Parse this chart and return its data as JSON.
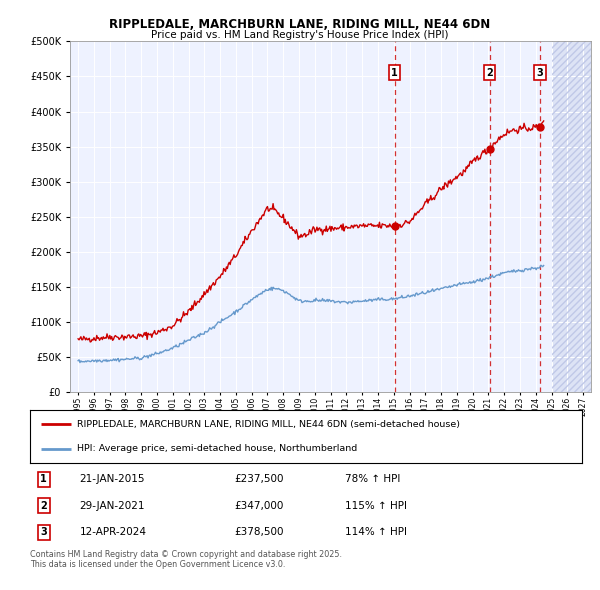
{
  "title1": "RIPPLEDALE, MARCHBURN LANE, RIDING MILL, NE44 6DN",
  "title2": "Price paid vs. HM Land Registry's House Price Index (HPI)",
  "legend1": "RIPPLEDALE, MARCHBURN LANE, RIDING MILL, NE44 6DN (semi-detached house)",
  "legend2": "HPI: Average price, semi-detached house, Northumberland",
  "sale_events": [
    {
      "num": 1,
      "date": "21-JAN-2015",
      "price": "£237,500",
      "pct": "78% ↑ HPI",
      "x_year": 2015.055,
      "y_val": 237500
    },
    {
      "num": 2,
      "date": "29-JAN-2021",
      "price": "£347,000",
      "pct": "115% ↑ HPI",
      "x_year": 2021.08,
      "y_val": 347000
    },
    {
      "num": 3,
      "date": "12-APR-2024",
      "price": "£378,500",
      "pct": "114% ↑ HPI",
      "x_year": 2024.28,
      "y_val": 378500
    }
  ],
  "footnote1": "Contains HM Land Registry data © Crown copyright and database right 2025.",
  "footnote2": "This data is licensed under the Open Government Licence v3.0.",
  "red_color": "#cc0000",
  "blue_color": "#6699cc",
  "chart_bg": "#eef2ff",
  "future_bg": "#e8eaf6",
  "ylim": [
    0,
    500000
  ],
  "xlim_left": 1994.5,
  "xlim_right": 2027.5,
  "future_x": 2025.0,
  "red_anchors_x": [
    1995,
    1996,
    1997,
    1998,
    1999,
    2000,
    2001,
    2002,
    2003,
    2004,
    2005,
    2006,
    2007,
    2007.5,
    2008,
    2008.5,
    2009,
    2009.5,
    2010,
    2011,
    2012,
    2013,
    2014,
    2015.055,
    2015.5,
    2016,
    2016.5,
    2017,
    2017.5,
    2018,
    2018.5,
    2019,
    2019.5,
    2020,
    2020.5,
    2021.08,
    2021.5,
    2022,
    2022.5,
    2023,
    2023.5,
    2024.28,
    2024.5
  ],
  "red_anchors_y": [
    75000,
    77000,
    79000,
    79000,
    80000,
    85000,
    95000,
    115000,
    140000,
    165000,
    195000,
    230000,
    262000,
    258000,
    248000,
    235000,
    222000,
    225000,
    232000,
    233000,
    235000,
    237000,
    237000,
    237500,
    239000,
    243000,
    255000,
    268000,
    278000,
    290000,
    298000,
    307000,
    315000,
    328000,
    338000,
    347000,
    358000,
    368000,
    373000,
    375000,
    376000,
    378500,
    390000
  ],
  "blue_anchors_x": [
    1995,
    1996,
    1997,
    1998,
    1999,
    2000,
    2001,
    2002,
    2003,
    2004,
    2005,
    2006,
    2007,
    2007.5,
    2008,
    2008.5,
    2009,
    2009.5,
    2010,
    2011,
    2012,
    2013,
    2014,
    2015,
    2016,
    2017,
    2018,
    2019,
    2020,
    2021,
    2022,
    2023,
    2024,
    2024.5
  ],
  "blue_anchors_y": [
    44000,
    45000,
    46000,
    47000,
    49000,
    55000,
    63000,
    74000,
    85000,
    100000,
    115000,
    132000,
    147000,
    148000,
    145000,
    138000,
    130000,
    130000,
    131000,
    130000,
    128000,
    130000,
    132000,
    133000,
    137000,
    142000,
    147000,
    153000,
    157000,
    163000,
    170000,
    174000,
    177000,
    180000
  ]
}
